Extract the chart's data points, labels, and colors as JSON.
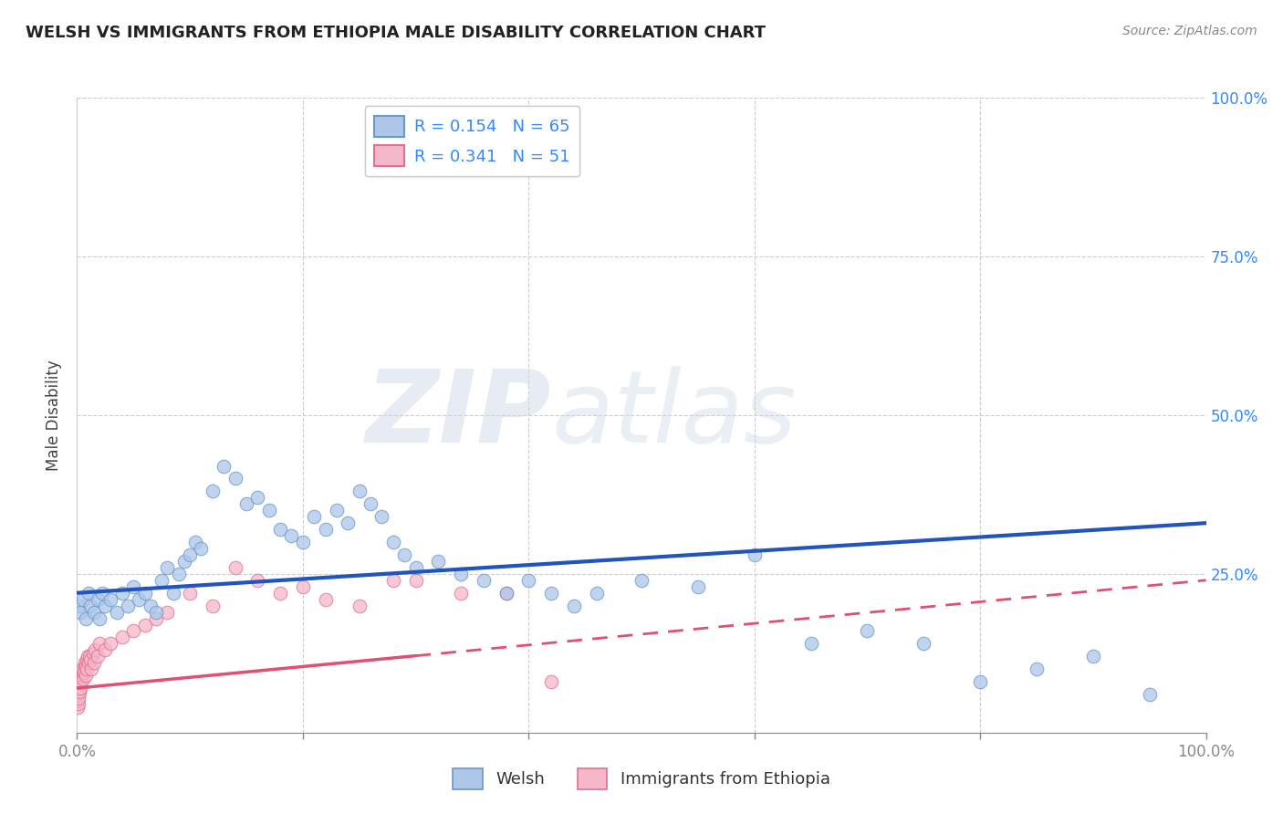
{
  "title": "WELSH VS IMMIGRANTS FROM ETHIOPIA MALE DISABILITY CORRELATION CHART",
  "source": "Source: ZipAtlas.com",
  "ylabel": "Male Disability",
  "legend_welsh": "Welsh",
  "legend_ethiopia": "Immigrants from Ethiopia",
  "R_welsh": 0.154,
  "N_welsh": 65,
  "R_ethiopia": 0.341,
  "N_ethiopia": 51,
  "welsh_color": "#aec6e8",
  "welsh_edge_color": "#6699cc",
  "ethiopia_color": "#f4b8c8",
  "ethiopia_edge_color": "#e07090",
  "welsh_line_color": "#2255bb",
  "ethiopia_line_color": "#e05070",
  "watermark_zip": "ZIP",
  "watermark_atlas": "atlas",
  "welsh_x": [
    0.2,
    0.3,
    0.5,
    0.8,
    1.0,
    1.2,
    1.5,
    1.8,
    2.0,
    2.2,
    2.5,
    3.0,
    3.5,
    4.0,
    4.5,
    5.0,
    5.5,
    6.0,
    6.5,
    7.0,
    7.5,
    8.0,
    8.5,
    9.0,
    9.5,
    10.0,
    10.5,
    11.0,
    12.0,
    13.0,
    14.0,
    15.0,
    16.0,
    17.0,
    18.0,
    19.0,
    20.0,
    21.0,
    22.0,
    23.0,
    24.0,
    25.0,
    26.0,
    27.0,
    28.0,
    29.0,
    30.0,
    32.0,
    34.0,
    36.0,
    38.0,
    40.0,
    42.0,
    44.0,
    46.0,
    50.0,
    55.0,
    60.0,
    65.0,
    70.0,
    75.0,
    80.0,
    85.0,
    90.0,
    95.0
  ],
  "welsh_y": [
    20.0,
    19.0,
    21.0,
    18.0,
    22.0,
    20.0,
    19.0,
    21.0,
    18.0,
    22.0,
    20.0,
    21.0,
    19.0,
    22.0,
    20.0,
    23.0,
    21.0,
    22.0,
    20.0,
    19.0,
    24.0,
    26.0,
    22.0,
    25.0,
    27.0,
    28.0,
    30.0,
    29.0,
    38.0,
    42.0,
    40.0,
    36.0,
    37.0,
    35.0,
    32.0,
    31.0,
    30.0,
    34.0,
    32.0,
    35.0,
    33.0,
    38.0,
    36.0,
    34.0,
    30.0,
    28.0,
    26.0,
    27.0,
    25.0,
    24.0,
    22.0,
    24.0,
    22.0,
    20.0,
    22.0,
    24.0,
    23.0,
    28.0,
    14.0,
    16.0,
    14.0,
    8.0,
    10.0,
    12.0,
    6.0
  ],
  "ethiopia_x": [
    0.05,
    0.08,
    0.1,
    0.12,
    0.15,
    0.18,
    0.2,
    0.25,
    0.3,
    0.35,
    0.4,
    0.45,
    0.5,
    0.55,
    0.6,
    0.65,
    0.7,
    0.75,
    0.8,
    0.85,
    0.9,
    0.95,
    1.0,
    1.1,
    1.2,
    1.3,
    1.4,
    1.5,
    1.6,
    1.8,
    2.0,
    2.5,
    3.0,
    4.0,
    5.0,
    6.0,
    7.0,
    8.0,
    10.0,
    12.0,
    14.0,
    16.0,
    18.0,
    20.0,
    22.0,
    25.0,
    28.0,
    30.0,
    34.0,
    38.0,
    42.0
  ],
  "ethiopia_y": [
    4.0,
    5.0,
    4.5,
    6.0,
    5.5,
    7.0,
    6.5,
    8.0,
    7.0,
    9.0,
    8.0,
    10.0,
    9.0,
    8.5,
    10.0,
    9.5,
    11.0,
    10.5,
    9.0,
    11.5,
    10.0,
    12.0,
    11.0,
    12.0,
    11.5,
    10.0,
    12.5,
    11.0,
    13.0,
    12.0,
    14.0,
    13.0,
    14.0,
    15.0,
    16.0,
    17.0,
    18.0,
    19.0,
    22.0,
    20.0,
    26.0,
    24.0,
    22.0,
    23.0,
    21.0,
    20.0,
    24.0,
    24.0,
    22.0,
    22.0,
    8.0
  ],
  "xlim": [
    0,
    100
  ],
  "ylim": [
    0,
    100
  ],
  "xticks": [
    0,
    20,
    40,
    60,
    80,
    100
  ],
  "yticks": [
    0,
    25,
    50,
    75,
    100
  ],
  "xticklabels": [
    "0.0%",
    "",
    "",
    "",
    "",
    "100.0%"
  ],
  "yticklabels_right": [
    "",
    "25.0%",
    "50.0%",
    "75.0%",
    "100.0%"
  ]
}
